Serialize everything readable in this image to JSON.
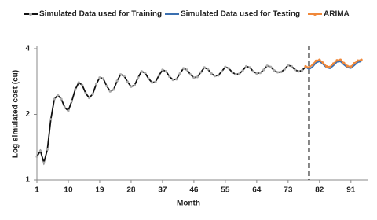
{
  "chart_data": {
    "type": "line",
    "xlabel": "Month",
    "ylabel": "Log simulated cost (cu)",
    "xlim": [
      1,
      96
    ],
    "xticks": [
      1,
      10,
      19,
      28,
      37,
      46,
      55,
      64,
      73,
      82,
      91
    ],
    "ylim": [
      1,
      4
    ],
    "yticks": [
      1,
      2,
      4
    ],
    "ylog": true,
    "grid": false,
    "vline_x": 79,
    "legend": "top",
    "series": [
      {
        "name": "Simulated Data used for Training",
        "color": "#111111",
        "marker_color": "#aaaaaa",
        "x": [
          1,
          2,
          3,
          4,
          5,
          6,
          7,
          8,
          9,
          10,
          11,
          12,
          13,
          14,
          15,
          16,
          17,
          18,
          19,
          20,
          21,
          22,
          23,
          24,
          25,
          26,
          27,
          28,
          29,
          30,
          31,
          32,
          33,
          34,
          35,
          36,
          37,
          38,
          39,
          40,
          41,
          42,
          43,
          44,
          45,
          46,
          47,
          48,
          49,
          50,
          51,
          52,
          53,
          54,
          55,
          56,
          57,
          58,
          59,
          60,
          61,
          62,
          63,
          64,
          65,
          66,
          67,
          68,
          69,
          70,
          71,
          72,
          73,
          74,
          75,
          76,
          77,
          78
        ],
        "values": [
          1.28,
          1.36,
          1.2,
          1.38,
          1.9,
          2.35,
          2.45,
          2.35,
          2.15,
          2.08,
          2.3,
          2.6,
          2.8,
          2.72,
          2.5,
          2.38,
          2.48,
          2.75,
          2.95,
          2.92,
          2.7,
          2.55,
          2.6,
          2.85,
          3.05,
          3.0,
          2.82,
          2.68,
          2.72,
          2.95,
          3.15,
          3.1,
          2.92,
          2.8,
          2.82,
          3.02,
          3.2,
          3.15,
          2.98,
          2.88,
          2.9,
          3.08,
          3.25,
          3.2,
          3.05,
          2.95,
          2.97,
          3.12,
          3.28,
          3.22,
          3.08,
          3.0,
          3.02,
          3.15,
          3.3,
          3.25,
          3.12,
          3.05,
          3.07,
          3.18,
          3.32,
          3.28,
          3.15,
          3.08,
          3.1,
          3.2,
          3.34,
          3.3,
          3.18,
          3.12,
          3.13,
          3.22,
          3.36,
          3.32,
          3.2,
          3.15,
          3.18,
          3.3
        ]
      },
      {
        "name": "Simulated Data used for Testing",
        "color": "#3a6fb0",
        "x": [
          78,
          79,
          80,
          81,
          82,
          83,
          84,
          85,
          86,
          87,
          88,
          89,
          90,
          91,
          92,
          93,
          94
        ],
        "values": [
          3.3,
          3.22,
          3.3,
          3.45,
          3.5,
          3.4,
          3.28,
          3.25,
          3.35,
          3.48,
          3.5,
          3.38,
          3.28,
          3.26,
          3.36,
          3.47,
          3.5
        ]
      },
      {
        "name": "ARIMA",
        "color": "#f0883a",
        "marker_color": "#f0883a",
        "x": [
          78,
          79,
          80,
          81,
          82,
          83,
          84,
          85,
          86,
          87,
          88,
          89,
          90,
          91,
          92,
          93,
          94
        ],
        "values": [
          3.32,
          3.28,
          3.38,
          3.52,
          3.56,
          3.45,
          3.32,
          3.3,
          3.42,
          3.54,
          3.56,
          3.44,
          3.33,
          3.31,
          3.43,
          3.53,
          3.56
        ]
      }
    ]
  }
}
